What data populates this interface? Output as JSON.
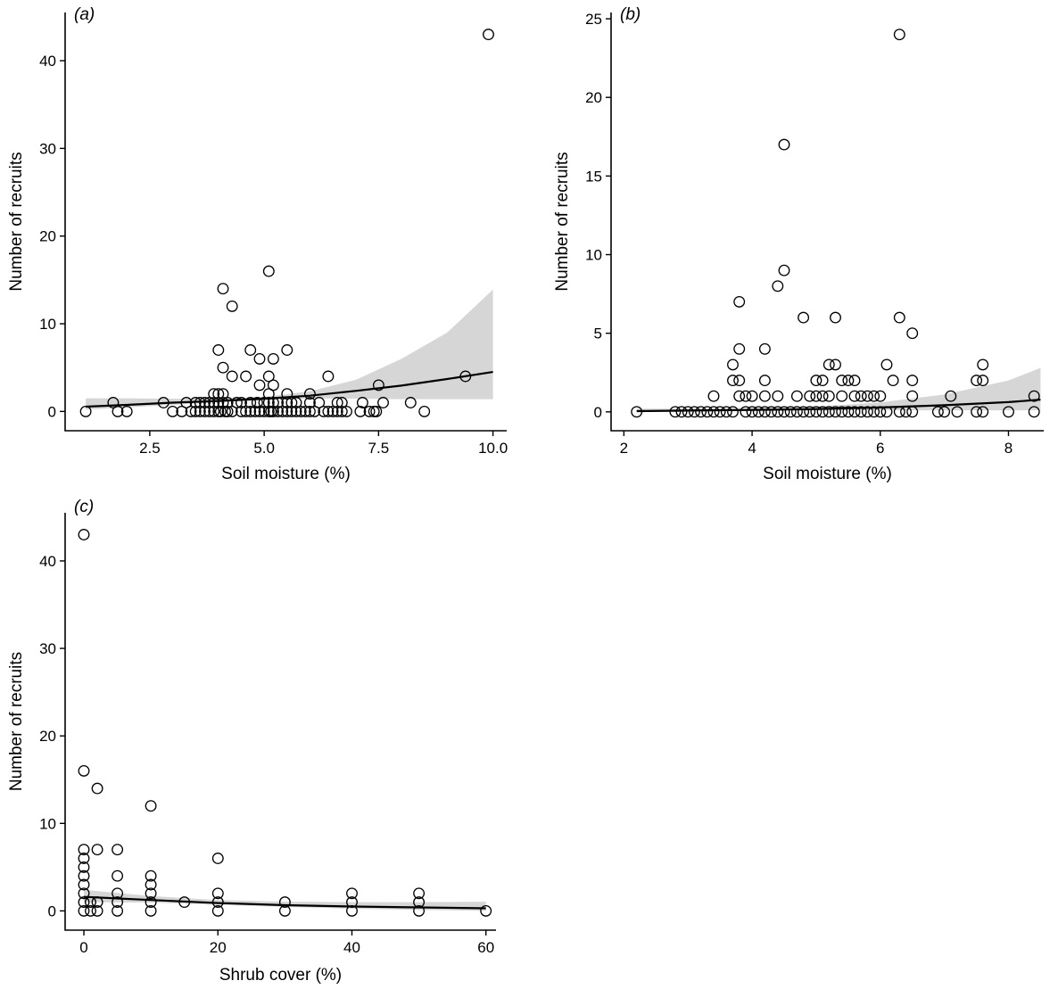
{
  "chart_data": [
    {
      "type": "scatter",
      "panel_label": "(a)",
      "xlabel": "Soil moisture (%)",
      "ylabel": "Number of recruits",
      "xlim": [
        0.65,
        10.3
      ],
      "ylim": [
        -2.2,
        45.5
      ],
      "xticks": [
        2.5,
        5.0,
        7.5,
        10.0
      ],
      "xtick_labels": [
        "2.5",
        "5.0",
        "7.5",
        "10.0"
      ],
      "yticks": [
        0,
        10,
        20,
        30,
        40
      ],
      "ytick_labels": [
        "0",
        "10",
        "20",
        "30",
        "40"
      ],
      "grid": false,
      "points": [
        [
          1.1,
          0
        ],
        [
          1.7,
          1
        ],
        [
          1.8,
          0
        ],
        [
          2.0,
          0
        ],
        [
          2.8,
          1
        ],
        [
          3.0,
          0
        ],
        [
          3.2,
          0
        ],
        [
          3.3,
          1
        ],
        [
          3.4,
          0
        ],
        [
          3.5,
          0
        ],
        [
          3.5,
          1
        ],
        [
          3.6,
          0
        ],
        [
          3.6,
          1
        ],
        [
          3.7,
          0
        ],
        [
          3.7,
          1
        ],
        [
          3.8,
          0
        ],
        [
          3.8,
          1
        ],
        [
          3.9,
          0
        ],
        [
          3.9,
          1
        ],
        [
          3.9,
          2
        ],
        [
          4.0,
          7
        ],
        [
          4.0,
          0
        ],
        [
          4.0,
          1
        ],
        [
          4.0,
          2
        ],
        [
          4.05,
          0
        ],
        [
          4.1,
          14
        ],
        [
          4.1,
          5
        ],
        [
          4.1,
          2
        ],
        [
          4.1,
          1
        ],
        [
          4.15,
          0
        ],
        [
          4.2,
          0
        ],
        [
          4.2,
          1
        ],
        [
          4.3,
          12
        ],
        [
          4.3,
          4
        ],
        [
          4.3,
          0
        ],
        [
          4.4,
          1
        ],
        [
          4.5,
          0
        ],
        [
          4.5,
          1
        ],
        [
          4.6,
          4
        ],
        [
          4.6,
          0
        ],
        [
          4.7,
          7
        ],
        [
          4.7,
          1
        ],
        [
          4.7,
          0
        ],
        [
          4.8,
          0
        ],
        [
          4.85,
          1
        ],
        [
          4.9,
          6
        ],
        [
          4.9,
          3
        ],
        [
          4.9,
          0
        ],
        [
          5.0,
          0
        ],
        [
          5.0,
          1
        ],
        [
          5.1,
          16
        ],
        [
          5.1,
          4
        ],
        [
          5.1,
          2
        ],
        [
          5.1,
          1
        ],
        [
          5.1,
          0
        ],
        [
          5.15,
          0
        ],
        [
          5.2,
          6
        ],
        [
          5.2,
          3
        ],
        [
          5.2,
          1
        ],
        [
          5.2,
          0
        ],
        [
          5.3,
          0
        ],
        [
          5.3,
          1
        ],
        [
          5.4,
          0
        ],
        [
          5.5,
          7
        ],
        [
          5.5,
          2
        ],
        [
          5.5,
          1
        ],
        [
          5.5,
          0
        ],
        [
          5.6,
          1
        ],
        [
          5.6,
          0
        ],
        [
          5.7,
          1
        ],
        [
          5.7,
          0
        ],
        [
          5.8,
          0
        ],
        [
          5.9,
          0
        ],
        [
          6.0,
          2
        ],
        [
          6.0,
          1
        ],
        [
          6.0,
          0
        ],
        [
          6.1,
          0
        ],
        [
          6.2,
          1
        ],
        [
          6.3,
          0
        ],
        [
          6.4,
          4
        ],
        [
          6.4,
          0
        ],
        [
          6.5,
          0
        ],
        [
          6.6,
          1
        ],
        [
          6.6,
          0
        ],
        [
          6.7,
          1
        ],
        [
          6.7,
          0
        ],
        [
          6.8,
          0
        ],
        [
          7.1,
          0
        ],
        [
          7.15,
          1
        ],
        [
          7.3,
          0
        ],
        [
          7.4,
          0
        ],
        [
          7.45,
          0
        ],
        [
          7.5,
          3
        ],
        [
          7.6,
          1
        ],
        [
          8.2,
          1
        ],
        [
          8.5,
          0
        ],
        [
          9.4,
          4
        ],
        [
          9.9,
          43
        ]
      ],
      "fit_x": [
        1.1,
        2,
        3,
        4,
        5,
        6,
        7,
        8,
        9,
        10
      ],
      "fit_y": [
        0.55,
        0.75,
        1.0,
        1.2,
        1.45,
        1.8,
        2.35,
        2.95,
        3.7,
        4.5
      ],
      "ci_lower": [
        0.2,
        0.45,
        0.75,
        1.05,
        1.3,
        1.5,
        1.45,
        1.4,
        1.4,
        1.4
      ],
      "ci_upper": [
        1.5,
        1.5,
        1.45,
        1.45,
        1.65,
        2.3,
        3.6,
        6.0,
        9.0,
        13.9
      ]
    },
    {
      "type": "scatter",
      "panel_label": "(b)",
      "xlabel": "Soil moisture (%)",
      "ylabel": "Number of recruits",
      "xlim": [
        1.8,
        8.55
      ],
      "ylim": [
        -1.2,
        25.4
      ],
      "xticks": [
        2,
        4,
        6,
        8
      ],
      "xtick_labels": [
        "2",
        "4",
        "6",
        "8"
      ],
      "yticks": [
        0,
        5,
        10,
        15,
        20,
        25
      ],
      "ytick_labels": [
        "0",
        "5",
        "10",
        "15",
        "20",
        "25"
      ],
      "grid": false,
      "points": [
        [
          2.2,
          0
        ],
        [
          2.8,
          0
        ],
        [
          2.9,
          0
        ],
        [
          3.0,
          0
        ],
        [
          3.1,
          0
        ],
        [
          3.2,
          0
        ],
        [
          3.3,
          0
        ],
        [
          3.4,
          1
        ],
        [
          3.4,
          0
        ],
        [
          3.5,
          0
        ],
        [
          3.6,
          0
        ],
        [
          3.7,
          3
        ],
        [
          3.7,
          2
        ],
        [
          3.7,
          0
        ],
        [
          3.8,
          7
        ],
        [
          3.8,
          4
        ],
        [
          3.8,
          2
        ],
        [
          3.8,
          1
        ],
        [
          3.9,
          1
        ],
        [
          3.9,
          0
        ],
        [
          4.0,
          1
        ],
        [
          4.0,
          0
        ],
        [
          4.1,
          0
        ],
        [
          4.2,
          4
        ],
        [
          4.2,
          2
        ],
        [
          4.2,
          1
        ],
        [
          4.2,
          0
        ],
        [
          4.3,
          0
        ],
        [
          4.4,
          8
        ],
        [
          4.4,
          1
        ],
        [
          4.4,
          0
        ],
        [
          4.5,
          17
        ],
        [
          4.5,
          9
        ],
        [
          4.5,
          0
        ],
        [
          4.6,
          0
        ],
        [
          4.7,
          1
        ],
        [
          4.7,
          0
        ],
        [
          4.8,
          6
        ],
        [
          4.8,
          0
        ],
        [
          4.9,
          1
        ],
        [
          4.9,
          0
        ],
        [
          5.0,
          2
        ],
        [
          5.0,
          1
        ],
        [
          5.0,
          0
        ],
        [
          5.1,
          2
        ],
        [
          5.1,
          1
        ],
        [
          5.1,
          0
        ],
        [
          5.2,
          3
        ],
        [
          5.2,
          1
        ],
        [
          5.2,
          0
        ],
        [
          5.3,
          6
        ],
        [
          5.3,
          3
        ],
        [
          5.3,
          0
        ],
        [
          5.4,
          2
        ],
        [
          5.4,
          1
        ],
        [
          5.4,
          0
        ],
        [
          5.5,
          2
        ],
        [
          5.5,
          0
        ],
        [
          5.6,
          2
        ],
        [
          5.6,
          1
        ],
        [
          5.6,
          0
        ],
        [
          5.7,
          1
        ],
        [
          5.7,
          0
        ],
        [
          5.8,
          1
        ],
        [
          5.8,
          0
        ],
        [
          5.9,
          1
        ],
        [
          5.9,
          0
        ],
        [
          6.0,
          1
        ],
        [
          6.0,
          0
        ],
        [
          6.1,
          3
        ],
        [
          6.1,
          0
        ],
        [
          6.2,
          2
        ],
        [
          6.3,
          24
        ],
        [
          6.3,
          6
        ],
        [
          6.3,
          0
        ],
        [
          6.4,
          0
        ],
        [
          6.5,
          5
        ],
        [
          6.5,
          2
        ],
        [
          6.5,
          1
        ],
        [
          6.5,
          0
        ],
        [
          6.9,
          0
        ],
        [
          7.0,
          0
        ],
        [
          7.1,
          1
        ],
        [
          7.2,
          0
        ],
        [
          7.5,
          2
        ],
        [
          7.5,
          0
        ],
        [
          7.6,
          3
        ],
        [
          7.6,
          2
        ],
        [
          7.6,
          0
        ],
        [
          8.0,
          0
        ],
        [
          8.4,
          1
        ],
        [
          8.4,
          0
        ]
      ],
      "fit_x": [
        2.2,
        3,
        4,
        5,
        6,
        7,
        8,
        8.5
      ],
      "fit_y": [
        0.05,
        0.08,
        0.12,
        0.18,
        0.28,
        0.42,
        0.62,
        0.78
      ],
      "ci_lower": [
        0.0,
        0.02,
        0.05,
        0.08,
        0.1,
        0.1,
        0.1,
        0.1
      ],
      "ci_upper": [
        0.2,
        0.2,
        0.25,
        0.35,
        0.6,
        1.1,
        2.0,
        2.8
      ]
    },
    {
      "type": "scatter",
      "panel_label": "(c)",
      "xlabel": "Shrub cover (%)",
      "ylabel": "Number of recruits",
      "xlim": [
        -2.8,
        61.5
      ],
      "ylim": [
        -2.2,
        45.5
      ],
      "xticks": [
        0,
        20,
        40,
        60
      ],
      "xtick_labels": [
        "0",
        "20",
        "40",
        "60"
      ],
      "yticks": [
        0,
        10,
        20,
        30,
        40
      ],
      "ytick_labels": [
        "0",
        "10",
        "20",
        "30",
        "40"
      ],
      "grid": false,
      "points": [
        [
          0,
          43
        ],
        [
          0,
          16
        ],
        [
          0,
          7
        ],
        [
          0,
          6
        ],
        [
          0,
          5
        ],
        [
          0,
          4
        ],
        [
          0,
          3
        ],
        [
          0,
          2
        ],
        [
          0,
          1
        ],
        [
          0,
          0
        ],
        [
          1,
          1
        ],
        [
          1,
          0
        ],
        [
          2,
          14
        ],
        [
          2,
          7
        ],
        [
          2,
          1
        ],
        [
          2,
          0
        ],
        [
          5,
          7
        ],
        [
          5,
          4
        ],
        [
          5,
          2
        ],
        [
          5,
          1
        ],
        [
          5,
          0
        ],
        [
          10,
          12
        ],
        [
          10,
          4
        ],
        [
          10,
          3
        ],
        [
          10,
          2
        ],
        [
          10,
          1
        ],
        [
          10,
          0
        ],
        [
          15,
          1
        ],
        [
          20,
          6
        ],
        [
          20,
          2
        ],
        [
          20,
          1
        ],
        [
          20,
          0
        ],
        [
          30,
          1
        ],
        [
          30,
          0
        ],
        [
          40,
          2
        ],
        [
          40,
          1
        ],
        [
          40,
          0
        ],
        [
          50,
          2
        ],
        [
          50,
          1
        ],
        [
          50,
          0
        ],
        [
          60,
          0
        ]
      ],
      "fit_x": [
        0,
        10,
        20,
        30,
        40,
        50,
        60
      ],
      "fit_y": [
        1.6,
        1.25,
        0.9,
        0.65,
        0.5,
        0.4,
        0.3
      ],
      "ci_lower": [
        1.0,
        0.95,
        0.7,
        0.45,
        0.25,
        0.1,
        0.0
      ],
      "ci_upper": [
        2.4,
        1.7,
        1.25,
        1.05,
        1.0,
        1.0,
        1.05
      ]
    }
  ]
}
